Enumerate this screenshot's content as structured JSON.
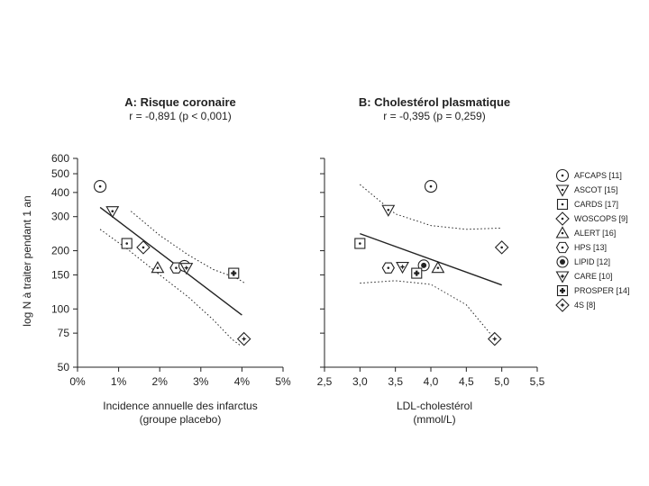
{
  "chart_data": [
    {
      "type": "scatter",
      "title": "A: Risque coronaire",
      "subtitle": "r = -0,891 (p < 0,001)",
      "xlabel": "Incidence annuelle des infarctus",
      "xlabel2": "(groupe placebo)",
      "ylabel": "log N à traiter pendant 1 an",
      "y_scale": "log",
      "xlim": [
        0,
        5
      ],
      "ylim": [
        50,
        600
      ],
      "x_ticks": [
        0,
        1,
        2,
        3,
        4,
        5
      ],
      "x_tick_labels": [
        "0%",
        "1%",
        "2%",
        "3%",
        "4%",
        "5%"
      ],
      "y_ticks": [
        50,
        75,
        100,
        150,
        200,
        300,
        400,
        500,
        600
      ],
      "y_tick_labels": [
        "50",
        "75",
        "100",
        "150",
        "200",
        "300",
        "400",
        "500",
        "600"
      ],
      "grid": false,
      "points": [
        {
          "study": "AFCAPS [11]",
          "x": 0.55,
          "y": 430
        },
        {
          "study": "ASCOT [15]",
          "x": 0.85,
          "y": 320
        },
        {
          "study": "CARDS [17]",
          "x": 1.2,
          "y": 218
        },
        {
          "study": "WOSCOPS [9]",
          "x": 1.6,
          "y": 208
        },
        {
          "study": "ALERT [16]",
          "x": 1.95,
          "y": 163
        },
        {
          "study": "HPS [13]",
          "x": 2.4,
          "y": 163
        },
        {
          "study": "LIPID [12]",
          "x": 2.6,
          "y": 167
        },
        {
          "study": "CARE [10]",
          "x": 2.65,
          "y": 163
        },
        {
          "study": "PROSPER [14]",
          "x": 3.8,
          "y": 153
        },
        {
          "study": "4S [8]",
          "x": 4.05,
          "y": 70
        }
      ],
      "regression": [
        [
          0.55,
          335
        ],
        [
          4.0,
          93
        ]
      ],
      "ci_upper": [
        [
          1.3,
          320
        ],
        [
          2.0,
          240
        ],
        [
          2.7,
          190
        ],
        [
          3.3,
          160
        ],
        [
          3.85,
          145
        ],
        [
          4.1,
          135
        ]
      ],
      "ci_lower": [
        [
          0.55,
          258
        ],
        [
          1.2,
          205
        ],
        [
          2.0,
          150
        ],
        [
          2.7,
          115
        ],
        [
          3.3,
          88
        ],
        [
          3.75,
          70
        ],
        [
          3.95,
          65
        ]
      ]
    },
    {
      "type": "scatter",
      "title": "B: Cholestérol plasmatique",
      "subtitle": "r = -0,395 (p = 0,259)",
      "xlabel": "LDL-cholestérol",
      "xlabel2": "(mmol/L)",
      "y_scale": "log",
      "xlim": [
        2.5,
        5.5
      ],
      "ylim": [
        50,
        600
      ],
      "x_ticks": [
        2.5,
        3.0,
        3.5,
        4.0,
        4.5,
        5.0,
        5.5
      ],
      "x_tick_labels": [
        "2,5",
        "3,0",
        "3,5",
        "4,0",
        "4,5",
        "5,0",
        "5,5"
      ],
      "grid": false,
      "points": [
        {
          "study": "AFCAPS [11]",
          "x": 4.0,
          "y": 430
        },
        {
          "study": "ASCOT [15]",
          "x": 3.4,
          "y": 325
        },
        {
          "study": "CARDS [17]",
          "x": 3.0,
          "y": 218
        },
        {
          "study": "WOSCOPS [9]",
          "x": 5.0,
          "y": 208
        },
        {
          "study": "ALERT [16]",
          "x": 4.1,
          "y": 163
        },
        {
          "study": "HPS [13]",
          "x": 3.4,
          "y": 163
        },
        {
          "study": "LIPID [12]",
          "x": 3.9,
          "y": 168
        },
        {
          "study": "CARE [10]",
          "x": 3.6,
          "y": 165
        },
        {
          "study": "PROSPER [14]",
          "x": 3.8,
          "y": 153
        },
        {
          "study": "4S [8]",
          "x": 4.9,
          "y": 70
        }
      ],
      "regression": [
        [
          3.0,
          245
        ],
        [
          5.0,
          133
        ]
      ],
      "ci_upper": [
        [
          3.0,
          440
        ],
        [
          3.5,
          310
        ],
        [
          4.0,
          270
        ],
        [
          4.5,
          258
        ],
        [
          5.0,
          262
        ]
      ],
      "ci_lower": [
        [
          3.0,
          136
        ],
        [
          3.5,
          140
        ],
        [
          4.0,
          134
        ],
        [
          4.5,
          105
        ],
        [
          4.9,
          70
        ]
      ]
    }
  ],
  "legend": {
    "placement": "right",
    "items": [
      {
        "label": "AFCAPS [11]",
        "marker": "circle-dot"
      },
      {
        "label": "ASCOT [15]",
        "marker": "triangle-down-dot"
      },
      {
        "label": "CARDS [17]",
        "marker": "square-dot"
      },
      {
        "label": "WOSCOPS [9]",
        "marker": "diamond-dot"
      },
      {
        "label": "ALERT [16]",
        "marker": "triangle-up-dot"
      },
      {
        "label": "HPS [13]",
        "marker": "hexagon-dot"
      },
      {
        "label": "LIPID [12]",
        "marker": "circle-bigdot"
      },
      {
        "label": "CARE [10]",
        "marker": "triangle-down-star"
      },
      {
        "label": "PROSPER [14]",
        "marker": "square-cross"
      },
      {
        "label": "4S [8]",
        "marker": "diamond-star"
      }
    ]
  },
  "colors": {
    "ink": "#222222",
    "background": "#ffffff"
  }
}
